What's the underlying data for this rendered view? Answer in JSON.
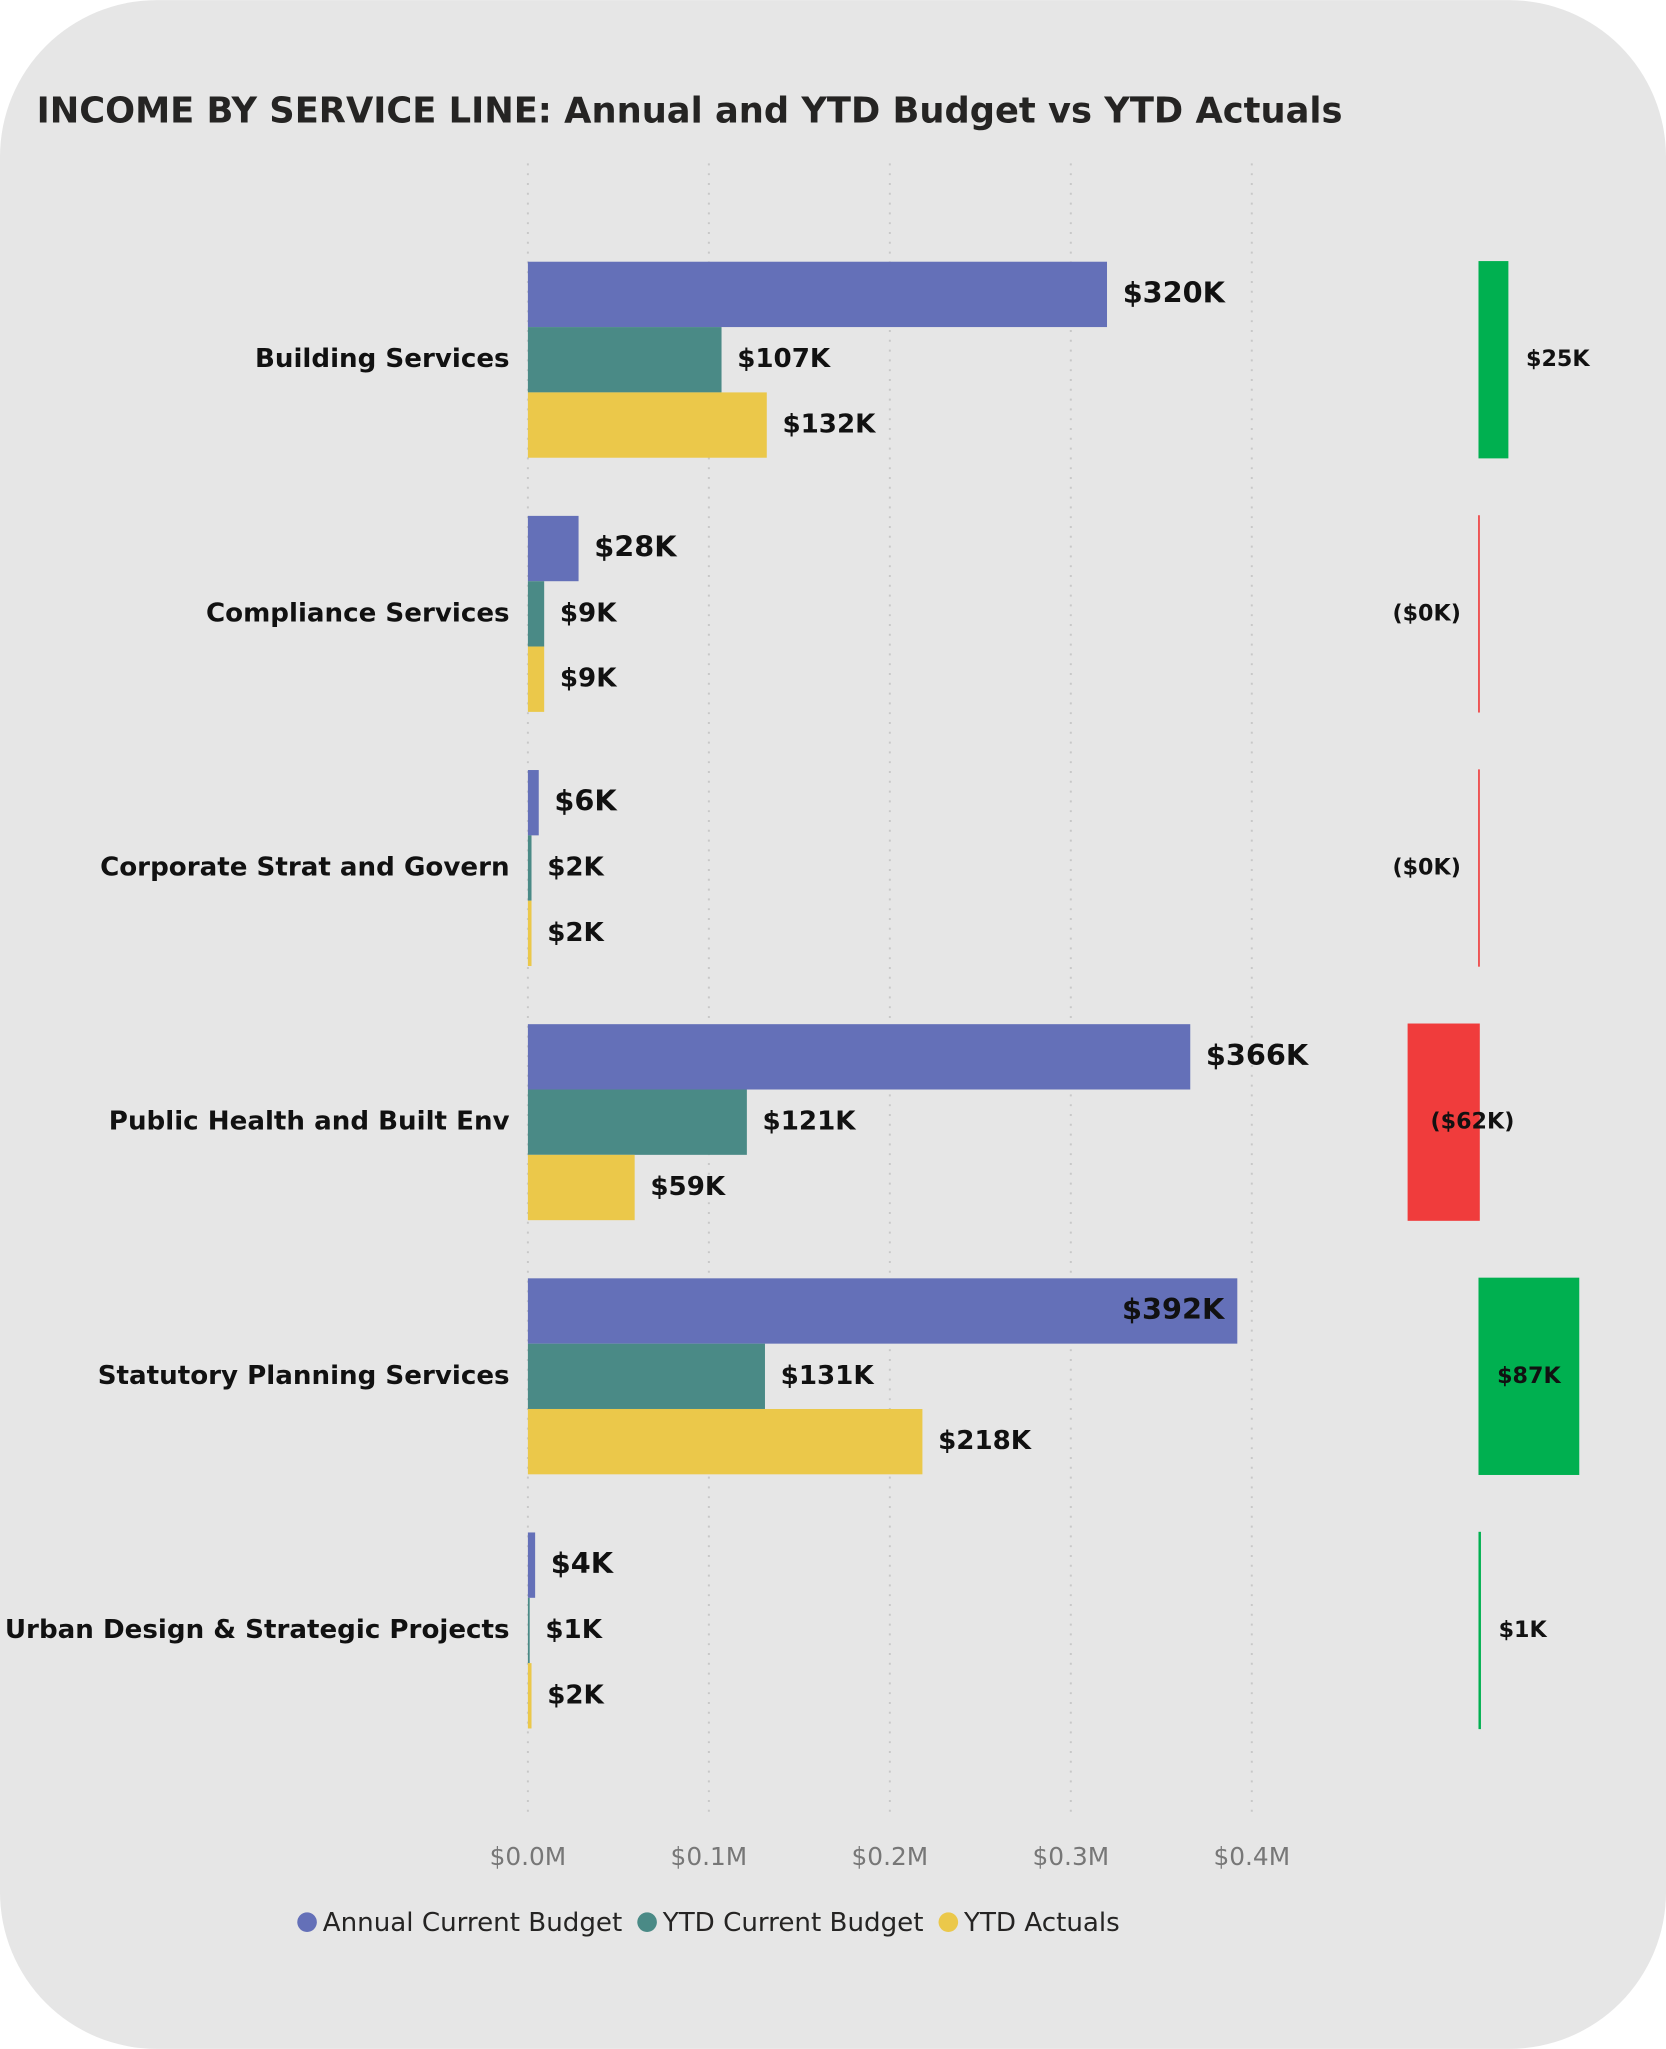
{
  "chart_data": [
    {
      "type": "bar",
      "orientation": "horizontal",
      "title": "INCOME BY SERVICE LINE: Annual and YTD Budget vs YTD Actuals",
      "categories": [
        "Building Services",
        "Compliance Services",
        "Corporate Strat and Govern",
        "Public Health and Built Env",
        "Statutory Planning Services",
        "Urban Design & Strategic Projects"
      ],
      "series": [
        {
          "name": "Annual Current Budget",
          "color": "#6470b8",
          "values": [
            0.32,
            0.028,
            0.006,
            0.366,
            0.392,
            0.004
          ],
          "value_labels": [
            "$320K",
            "$28K",
            "$6K",
            "$366K",
            "$392K",
            "$4K"
          ]
        },
        {
          "name": "YTD Current Budget",
          "color": "#4a8a86",
          "values": [
            0.107,
            0.009,
            0.002,
            0.121,
            0.131,
            0.001
          ],
          "value_labels": [
            "$107K",
            "$9K",
            "$2K",
            "$121K",
            "$131K",
            "$1K"
          ]
        },
        {
          "name": "YTD Actuals",
          "color": "#ebc84a",
          "values": [
            0.132,
            0.009,
            0.002,
            0.059,
            0.218,
            0.002
          ],
          "value_labels": [
            "$132K",
            "$9K",
            "$2K",
            "$59K",
            "$218K",
            "$2K"
          ]
        }
      ],
      "xlim": [
        0,
        0.4
      ],
      "xticks": [
        {
          "value": 0,
          "label": "$0.0M"
        },
        {
          "value": 0.1,
          "label": "$0.1M"
        },
        {
          "value": 0.2,
          "label": "$0.2M"
        },
        {
          "value": 0.3,
          "label": "$0.3M"
        },
        {
          "value": 0.4,
          "label": "$0.4M"
        }
      ],
      "grid": true,
      "legend": "bottom"
    },
    {
      "type": "variance",
      "values": [
        25,
        -0.3,
        -0.3,
        -62,
        87,
        1
      ],
      "value_labels": [
        "$25K",
        "($0K)",
        "($0K)",
        "($62K)",
        "$87K",
        "$1K"
      ],
      "positive_color": "#00b050",
      "negative_color": "#f03c3c"
    }
  ]
}
